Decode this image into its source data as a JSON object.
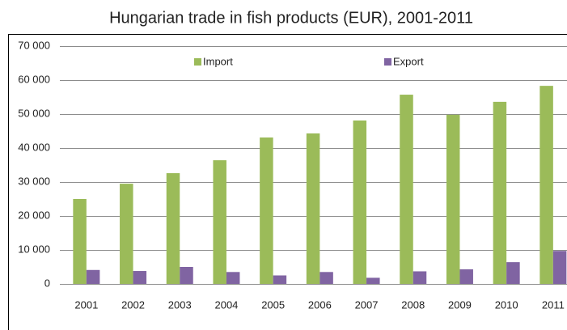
{
  "chart_data": {
    "type": "bar",
    "title": "Hungarian trade in fish products (EUR), 2001-2011",
    "categories": [
      "2001",
      "2002",
      "2003",
      "2004",
      "2005",
      "2006",
      "2007",
      "2008",
      "2009",
      "2010",
      "2011"
    ],
    "series": [
      {
        "name": "Import",
        "color": "#9bbb59",
        "values": [
          25000,
          29500,
          32600,
          36400,
          43100,
          44300,
          48100,
          55700,
          49800,
          53600,
          58300
        ]
      },
      {
        "name": "Export",
        "color": "#8064a2",
        "values": [
          4100,
          3800,
          5000,
          3500,
          2500,
          3500,
          1800,
          3700,
          4300,
          6400,
          9700
        ]
      }
    ],
    "ylim": [
      0,
      70000
    ],
    "yticks": [
      0,
      {
        "value": 10000,
        "label": "10 000"
      },
      {
        "value": 20000,
        "label": "20 000"
      },
      {
        "value": 30000,
        "label": "30 000"
      },
      {
        "value": 40000,
        "label": "40 000"
      },
      {
        "value": 50000,
        "label": "50 000"
      },
      {
        "value": 60000,
        "label": "60 000"
      },
      {
        "value": 70000,
        "label": "70 000"
      }
    ],
    "grid": true,
    "legend": "top"
  }
}
